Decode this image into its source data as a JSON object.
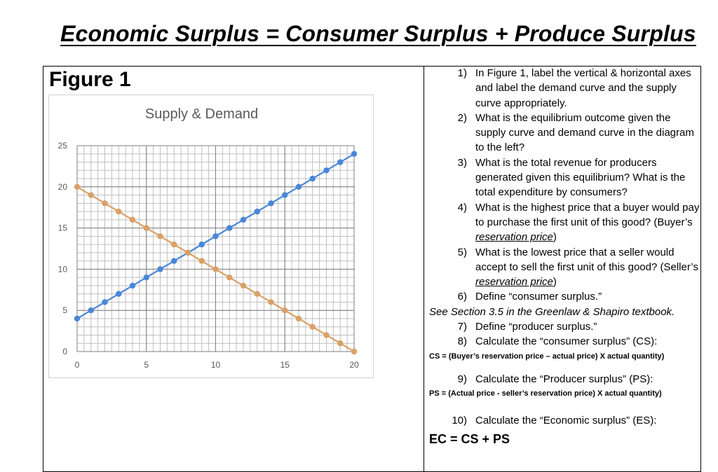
{
  "header": {
    "title": "Economic Surplus = Consumer Surplus + Produce Surplus"
  },
  "figure": {
    "label": "Figure 1"
  },
  "chart_data": {
    "type": "line",
    "title": "Supply & Demand",
    "xlabel": "",
    "ylabel": "",
    "xlim": [
      0,
      20
    ],
    "ylim": [
      0,
      25
    ],
    "x_ticks": [
      "0",
      "5",
      "10",
      "15",
      "20"
    ],
    "y_ticks": [
      "0",
      "5",
      "10",
      "15",
      "20",
      "25"
    ],
    "grid": true,
    "legend": "none",
    "x": [
      0,
      1,
      2,
      3,
      4,
      5,
      6,
      7,
      8,
      9,
      10,
      11,
      12,
      13,
      14,
      15,
      16,
      17,
      18,
      19,
      20
    ],
    "series": [
      {
        "color": "#4a86d8",
        "values": [
          4,
          5,
          6,
          7,
          8,
          9,
          10,
          11,
          12,
          13,
          14,
          15,
          16,
          17,
          18,
          19,
          20,
          21,
          22,
          23,
          24
        ]
      },
      {
        "color": "#d9a066",
        "values": [
          20,
          19,
          18,
          17,
          16,
          15,
          14,
          13,
          12,
          11,
          10,
          9,
          8,
          7,
          6,
          5,
          4,
          3,
          2,
          1,
          0
        ]
      }
    ]
  },
  "questions": {
    "q1": {
      "num": "1)",
      "text": "In Figure 1, label the vertical & horizontal axes and label the demand curve and the supply curve appropriately."
    },
    "q2": {
      "num": "2)",
      "text": "What is the equilibrium outcome given the supply curve and demand curve in the diagram to the left?"
    },
    "q3": {
      "num": "3)",
      "text": "What is the total revenue for producers generated given this equilibrium?  What is the total expenditure by consumers?"
    },
    "q4": {
      "num": "4)",
      "text_a": "What is the highest price that a buyer would pay to purchase the first unit of this good? (Buyer’s ",
      "term": "reservation price",
      "text_b": ")"
    },
    "q5": {
      "num": "5)",
      "text_a": "What is the lowest price that a seller would accept to sell the first unit of this good? (Seller’s ",
      "term": "reservation price",
      "text_b": ")"
    },
    "q6": {
      "num": "6)",
      "text": "Define “consumer surplus.”"
    },
    "note": "See Section 3.5 in the Greenlaw & Shapiro textbook.",
    "q7": {
      "num": "7)",
      "text": "Define “producer surplus.”"
    },
    "q8": {
      "num": "8)",
      "text": "Calculate the “consumer surplus” (CS):"
    },
    "cs_formula": "CS = (Buyer’s reservation price – actual price) X actual quantity)",
    "q9": {
      "num": "9)",
      "text": "Calculate the “Producer surplus” (PS):"
    },
    "ps_formula": "PS  = (Actual price - seller’s reservation price) X actual quantity)",
    "q10": {
      "num": "10)",
      "text": "Calculate the “Economic surplus” (ES):"
    },
    "ec_formula": "EC = CS + PS"
  }
}
